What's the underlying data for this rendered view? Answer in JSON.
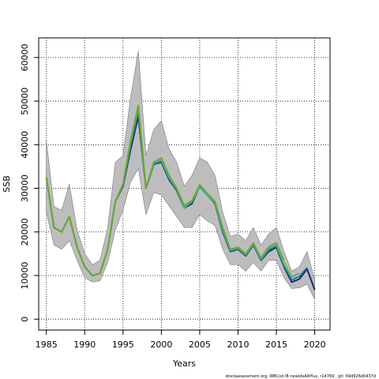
{
  "chart_data": {
    "type": "line",
    "xlabel": "Years",
    "ylabel": "SSB",
    "xlim": [
      1984,
      2022
    ],
    "ylim": [
      -2500,
      64500
    ],
    "x_ticks": [
      1985,
      1990,
      1995,
      2000,
      2005,
      2010,
      2015,
      2020
    ],
    "y_ticks": [
      0,
      10000,
      20000,
      30000,
      40000,
      50000,
      60000
    ],
    "grid": true,
    "caption": "stockassessment.org, WBCod IB newidxAltPlus, r14769 , git: 69d926d0437d",
    "colors": {
      "band": "#bdbdbd",
      "band_edge": "#7a7a7a",
      "series": [
        "#1a2a6c",
        "#2a6f8e",
        "#35b0a8",
        "#8cc63f",
        "#6aa830"
      ]
    },
    "band": {
      "x": [
        1985,
        1986,
        1987,
        1988,
        1989,
        1990,
        1991,
        1992,
        1993,
        1994,
        1995,
        1996,
        1997,
        1998,
        1999,
        2000,
        2001,
        2002,
        2003,
        2004,
        2005,
        2006,
        2007,
        2008,
        2009,
        2010,
        2011,
        2012,
        2013,
        2014,
        2015,
        2016,
        2017,
        2018,
        2019,
        2020
      ],
      "upper": [
        41000,
        25800,
        25000,
        31000,
        20500,
        15000,
        12500,
        13500,
        21000,
        36000,
        37500,
        51000,
        61500,
        37500,
        43500,
        45500,
        39000,
        36000,
        30500,
        33000,
        37000,
        36000,
        33000,
        24500,
        19000,
        19500,
        18000,
        21000,
        17000,
        19500,
        21000,
        15500,
        11000,
        12000,
        15500,
        9000
      ],
      "lower": [
        24500,
        17000,
        16000,
        18000,
        13500,
        9500,
        8500,
        8800,
        13000,
        20500,
        25000,
        31500,
        34500,
        24000,
        29000,
        28500,
        26000,
        23500,
        21000,
        21000,
        24000,
        22500,
        21500,
        16000,
        12500,
        12500,
        11000,
        13000,
        11000,
        13500,
        13500,
        9500,
        7000,
        7200,
        8000,
        4500
      ]
    },
    "series": [
      {
        "x": [
          1985,
          1986,
          1987,
          1988,
          1989,
          1990,
          1991,
          1992,
          1993,
          1994,
          1995,
          1996,
          1997,
          1998,
          1999,
          2000,
          2001,
          2002,
          2003,
          2004,
          2005,
          2006,
          2007,
          2008,
          2009,
          2010,
          2011,
          2012,
          2013,
          2014,
          2015,
          2016,
          2017,
          2018,
          2019,
          2020
        ],
        "values": [
          32500,
          21000,
          20000,
          23500,
          16500,
          12000,
          10000,
          10500,
          16000,
          27000,
          30500,
          39000,
          46500,
          30000,
          35500,
          36000,
          32000,
          29500,
          25500,
          26500,
          30500,
          28500,
          26500,
          20000,
          15500,
          16000,
          14500,
          17000,
          13500,
          15500,
          16500,
          12000,
          8500,
          9200,
          11500,
          6700
        ]
      },
      {
        "x": [
          1985,
          1986,
          1987,
          1988,
          1989,
          1990,
          1991,
          1992,
          1993,
          1994,
          1995,
          1996,
          1997,
          1998,
          1999,
          2000,
          2001,
          2002,
          2003,
          2004,
          2005,
          2006,
          2007,
          2008,
          2009,
          2010,
          2011,
          2012,
          2013,
          2014,
          2015,
          2016,
          2017,
          2018,
          2019
        ],
        "values": [
          32500,
          21000,
          20000,
          23500,
          16500,
          12000,
          10000,
          10500,
          16000,
          27000,
          30800,
          40000,
          47500,
          30000,
          35500,
          36200,
          32200,
          29700,
          25700,
          26800,
          30500,
          28600,
          26600,
          20200,
          15600,
          16100,
          14600,
          17100,
          13600,
          15800,
          16800,
          12200,
          9000,
          9800,
          11800
        ]
      },
      {
        "x": [
          1985,
          1986,
          1987,
          1988,
          1989,
          1990,
          1991,
          1992,
          1993,
          1994,
          1995,
          1996,
          1997,
          1998,
          1999,
          2000,
          2001,
          2002,
          2003,
          2004,
          2005,
          2006,
          2007,
          2008,
          2009,
          2010,
          2011,
          2012,
          2013,
          2014,
          2015,
          2016,
          2017,
          2018
        ],
        "values": [
          32500,
          21000,
          20000,
          23500,
          16500,
          12000,
          10000,
          10500,
          16000,
          27000,
          30800,
          40500,
          48500,
          30000,
          35800,
          36500,
          32500,
          29800,
          25500,
          27000,
          30200,
          28400,
          26700,
          20500,
          15800,
          16300,
          14800,
          17300,
          13800,
          16200,
          17000,
          12500,
          9700,
          10500
        ]
      },
      {
        "x": [
          1985,
          1986,
          1987,
          1988,
          1989,
          1990,
          1991,
          1992,
          1993,
          1994,
          1995,
          1996,
          1997,
          1998,
          1999,
          2000,
          2001,
          2002,
          2003,
          2004,
          2005,
          2006,
          2007,
          2008,
          2009,
          2010,
          2011,
          2012,
          2013,
          2014,
          2015,
          2016,
          2017
        ],
        "values": [
          32500,
          21000,
          20000,
          23500,
          16500,
          12000,
          10000,
          10500,
          16000,
          27000,
          31000,
          41000,
          49000,
          30000,
          36000,
          36800,
          33000,
          30000,
          26000,
          27200,
          30800,
          28800,
          27000,
          21000,
          16000,
          16500,
          15000,
          17500,
          14000,
          16600,
          17500,
          13200,
          10000
        ]
      },
      {
        "x": [
          1985,
          1986,
          1987,
          1988,
          1989,
          1990,
          1991,
          1992,
          1993,
          1994,
          1995,
          1996,
          1997,
          1998,
          1999,
          2000,
          2001,
          2002,
          2003,
          2004,
          2005,
          2006,
          2007,
          2008,
          2009,
          2010,
          2011,
          2012,
          2013,
          2014,
          2015,
          2016
        ],
        "values": [
          32500,
          21000,
          20000,
          23500,
          16500,
          12000,
          10000,
          10500,
          16000,
          27000,
          31000,
          41000,
          49000,
          30000,
          36000,
          37000,
          33000,
          30000,
          26000,
          27200,
          30800,
          28800,
          27000,
          21000,
          16000,
          16500,
          15000,
          17500,
          14000,
          16600,
          17500,
          13500
        ]
      }
    ]
  }
}
